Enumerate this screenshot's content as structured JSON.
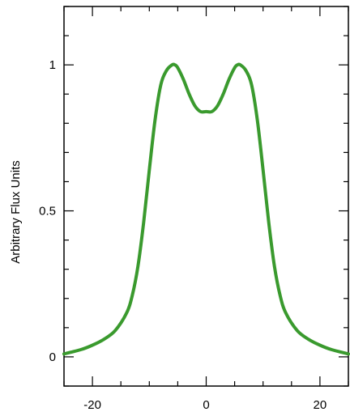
{
  "chart_data": {
    "type": "line",
    "title": "",
    "xlabel": "",
    "ylabel": "Arbitrary Flux Units",
    "xlim": [
      -25,
      25
    ],
    "ylim": [
      -0.1,
      1.2
    ],
    "grid": false,
    "x_ticks": [
      -20,
      0,
      20
    ],
    "x_tick_labels": [
      "-20",
      "0",
      "20"
    ],
    "y_ticks": [
      0,
      0.5,
      1
    ],
    "y_tick_labels": [
      "0",
      "0.5",
      "1"
    ],
    "series": [
      {
        "color": "#3a9a2e",
        "x": [
          -25,
          -22,
          -20,
          -18,
          -16,
          -14,
          -13,
          -12,
          -11,
          -10,
          -9,
          -8,
          -7,
          -6,
          -5.5,
          -5,
          -4,
          -3,
          -2,
          -1,
          0,
          1,
          2,
          3,
          4,
          5,
          5.5,
          6,
          7,
          8,
          9,
          10,
          11,
          12,
          13,
          14,
          16,
          18,
          20,
          22,
          25
        ],
        "y": [
          0.01,
          0.025,
          0.04,
          0.06,
          0.09,
          0.15,
          0.21,
          0.31,
          0.46,
          0.64,
          0.81,
          0.93,
          0.98,
          1.0,
          1.0,
          0.99,
          0.95,
          0.9,
          0.86,
          0.84,
          0.84,
          0.84,
          0.86,
          0.9,
          0.95,
          0.99,
          1.0,
          1.0,
          0.98,
          0.93,
          0.81,
          0.64,
          0.46,
          0.31,
          0.21,
          0.15,
          0.09,
          0.06,
          0.04,
          0.025,
          0.01
        ]
      }
    ]
  }
}
